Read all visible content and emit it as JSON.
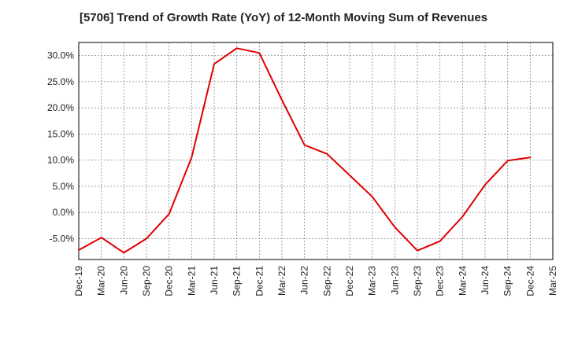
{
  "chart_data": {
    "type": "line",
    "title": "[5706]  Trend of Growth Rate (YoY) of 12-Month Moving Sum of Revenues",
    "xlabel": "",
    "ylabel": "",
    "x_ticks": [
      "Dec-19",
      "Mar-20",
      "Jun-20",
      "Sep-20",
      "Dec-20",
      "Mar-21",
      "Jun-21",
      "Sep-21",
      "Dec-21",
      "Mar-22",
      "Jun-22",
      "Sep-22",
      "Dec-22",
      "Mar-23",
      "Jun-23",
      "Sep-23",
      "Dec-23",
      "Mar-24",
      "Jun-24",
      "Sep-24",
      "Dec-24",
      "Mar-25"
    ],
    "y_ticks": [
      -5,
      0,
      5,
      10,
      15,
      20,
      25,
      30
    ],
    "y_tick_labels": [
      "-5.0%",
      "0.0%",
      "5.0%",
      "10.0%",
      "15.0%",
      "20.0%",
      "25.0%",
      "30.0%"
    ],
    "ylim": [
      -9,
      32.5
    ],
    "grid": true,
    "series": [
      {
        "color": "#e00000",
        "x": [
          "Dec-19",
          "Mar-20",
          "Jun-20",
          "Sep-20",
          "Dec-20",
          "Mar-21",
          "Jun-21",
          "Sep-21",
          "Dec-21",
          "Mar-22",
          "Jun-22",
          "Sep-22",
          "Dec-22",
          "Mar-23",
          "Jun-23",
          "Sep-23",
          "Dec-23",
          "Mar-24",
          "Jun-24",
          "Sep-24",
          "Dec-24"
        ],
        "values": [
          -7.2,
          -4.8,
          -7.7,
          -5.0,
          -0.3,
          10.5,
          28.4,
          31.4,
          30.5,
          21.5,
          12.9,
          11.2,
          7.1,
          3.0,
          -2.8,
          -7.3,
          -5.5,
          -0.8,
          5.3,
          9.9,
          10.5
        ]
      }
    ]
  }
}
